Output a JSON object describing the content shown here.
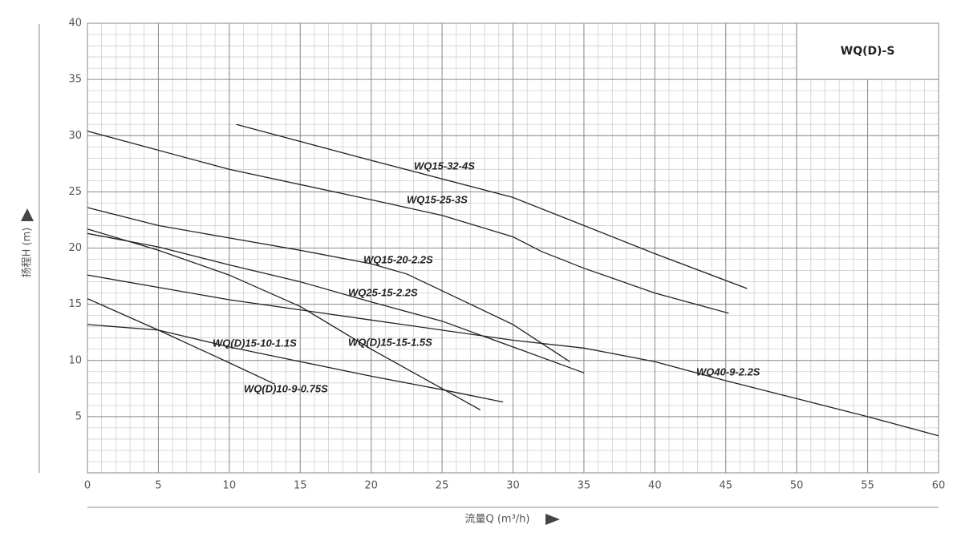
{
  "chart_data": {
    "type": "line",
    "title": "WQ(D)-S",
    "x_label": "流量Q (m³/h)",
    "y_label": "扬程H (m)",
    "xlim": [
      0,
      60
    ],
    "ylim": [
      0,
      40
    ],
    "xticks": [
      0,
      5,
      10,
      15,
      20,
      25,
      30,
      35,
      40,
      45,
      50,
      55,
      60
    ],
    "yticks": [
      5,
      10,
      15,
      20,
      25,
      30,
      35,
      40
    ],
    "grid": true,
    "minor_grid_step": 1,
    "series": [
      {
        "name": "WQ15-32-4S",
        "color": "#222222",
        "x": [
          10.5,
          20,
          30,
          35,
          40,
          46.5
        ],
        "values": [
          31,
          27.8,
          24.5,
          22,
          19.5,
          16.4
        ]
      },
      {
        "name": "WQ15-25-3S",
        "color": "#222222",
        "x": [
          0,
          10,
          20,
          25,
          30,
          32,
          35,
          40,
          45.2
        ],
        "values": [
          30.4,
          27,
          24.3,
          22.9,
          21,
          19.7,
          18.2,
          16,
          14.2
        ]
      },
      {
        "name": "WQ15-20-2.2S",
        "color": "#222222",
        "x": [
          0,
          5,
          10,
          15,
          20,
          22.5,
          25,
          30,
          34
        ],
        "values": [
          23.6,
          22,
          20.9,
          19.8,
          18.6,
          17.7,
          16.2,
          13.2,
          9.9
        ]
      },
      {
        "name": "WQ25-15-2.2S",
        "color": "#222222",
        "x": [
          0,
          5,
          10,
          15,
          20,
          25,
          30,
          35
        ],
        "values": [
          21.3,
          20.1,
          18.5,
          17,
          15.2,
          13.5,
          11.2,
          8.9
        ]
      },
      {
        "name": "WQ(D)15-15-1.5S",
        "color": "#222222",
        "x": [
          0,
          5,
          10,
          15,
          20,
          25,
          27.7
        ],
        "values": [
          21.7,
          19.8,
          17.6,
          14.8,
          11,
          7.5,
          5.6
        ]
      },
      {
        "name": "WQ40-9-2.2S",
        "color": "#222222",
        "x": [
          0,
          10,
          20,
          30,
          35,
          40,
          45,
          50,
          55,
          60
        ],
        "values": [
          17.6,
          15.4,
          13.6,
          11.8,
          11.1,
          9.9,
          8.2,
          6.6,
          5,
          3.3
        ]
      },
      {
        "name": "WQ(D)15-10-1.1S",
        "color": "#222222",
        "x": [
          0,
          5,
          10,
          15,
          20,
          25,
          29.3
        ],
        "values": [
          13.2,
          12.7,
          11.2,
          9.9,
          8.6,
          7.4,
          6.3
        ]
      },
      {
        "name": "WQ(D)10-9-0.75S",
        "color": "#222222",
        "x": [
          0,
          5,
          10,
          13.2
        ],
        "values": [
          15.5,
          12.7,
          9.8,
          7.9
        ]
      }
    ]
  }
}
